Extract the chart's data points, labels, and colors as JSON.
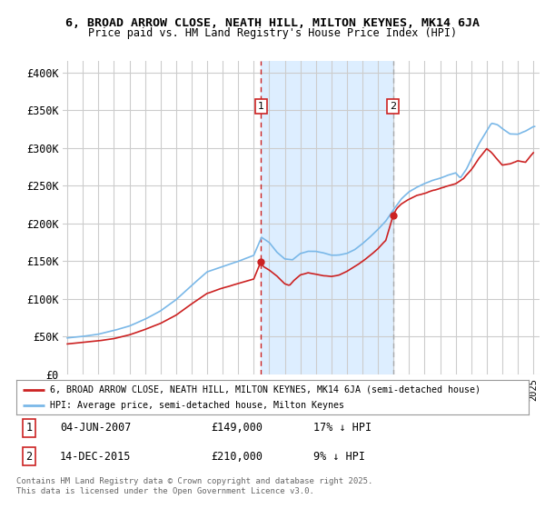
{
  "title1": "6, BROAD ARROW CLOSE, NEATH HILL, MILTON KEYNES, MK14 6JA",
  "title2": "Price paid vs. HM Land Registry's House Price Index (HPI)",
  "ylabel_ticks": [
    "£0",
    "£50K",
    "£100K",
    "£150K",
    "£200K",
    "£250K",
    "£300K",
    "£350K",
    "£400K"
  ],
  "ytick_vals": [
    0,
    50000,
    100000,
    150000,
    200000,
    250000,
    300000,
    350000,
    400000
  ],
  "ylim": [
    0,
    415000
  ],
  "hpi_color": "#7ab8e8",
  "price_color": "#cc2222",
  "marker1_x": 2007.458,
  "marker1_price": 149000,
  "marker1_label": "04-JUN-2007",
  "marker1_pct": "17% ↓ HPI",
  "marker2_x": 2015.958,
  "marker2_price": 210000,
  "marker2_label": "14-DEC-2015",
  "marker2_pct": "9% ↓ HPI",
  "legend_line1": "6, BROAD ARROW CLOSE, NEATH HILL, MILTON KEYNES, MK14 6JA (semi-detached house)",
  "legend_line2": "HPI: Average price, semi-detached house, Milton Keynes",
  "footnote": "Contains HM Land Registry data © Crown copyright and database right 2025.\nThis data is licensed under the Open Government Licence v3.0.",
  "background_color": "#ffffff",
  "plot_bg_color": "#ffffff",
  "vshade_color": "#ddeeff",
  "grid_color": "#cccccc",
  "vline1_color": "#cc2222",
  "vline2_color": "#aaaaaa"
}
